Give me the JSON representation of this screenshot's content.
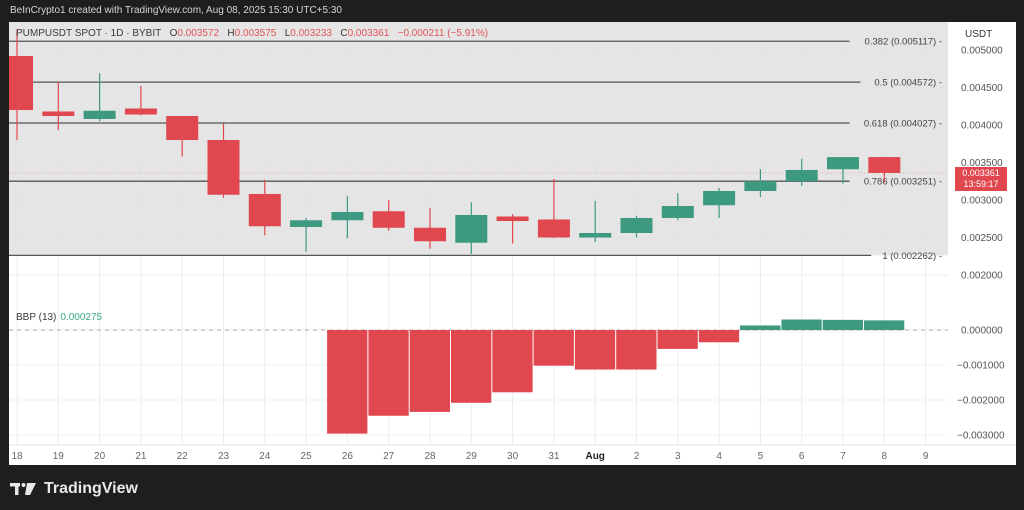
{
  "header": {
    "attribution": "BeInCrypto1 created with TradingView.com, Aug 08, 2025 15:30 UTC+5:30"
  },
  "legend": {
    "symbol": "PUMPUSDT SPOT · 1D · BYBIT",
    "o_label": "O",
    "o_value": "0.003572",
    "h_label": "H",
    "h_value": "0.003575",
    "l_label": "L",
    "l_value": "0.003233",
    "c_label": "C",
    "c_value": "0.003361",
    "change": "−0.000211 (−5.91%)"
  },
  "price_axis": {
    "unit": "USDT",
    "ticks": [
      "0.005000",
      "0.004500",
      "0.004000",
      "0.003500",
      "0.003000",
      "0.002500",
      "0.002000"
    ]
  },
  "last_price_tag": {
    "price": "0.003361",
    "countdown": "13:59:17"
  },
  "indicator": {
    "name": "BBP (13)",
    "value": "0.000275",
    "ticks": [
      "0.000000",
      "−0.001000",
      "−0.002000",
      "−0.003000"
    ]
  },
  "footer": {
    "brand": "TradingView"
  },
  "colors": {
    "up": "#3d9a80",
    "down": "#e0474e",
    "fib_zone": "#e2e2e2",
    "fib_line": "#555555"
  },
  "chart_data": [
    {
      "type": "candlestick",
      "title": "PUMPUSDT SPOT · 1D · BYBIT",
      "ylabel": "USDT",
      "ylim": [
        0.0019,
        0.00525
      ],
      "x": [
        "18",
        "19",
        "20",
        "21",
        "22",
        "23",
        "24",
        "25",
        "26",
        "27",
        "28",
        "29",
        "30",
        "31",
        "Aug",
        "2",
        "3",
        "4",
        "5",
        "6",
        "7",
        "8"
      ],
      "x_ticks": [
        "18",
        "19",
        "20",
        "21",
        "22",
        "23",
        "24",
        "25",
        "26",
        "27",
        "28",
        "29",
        "30",
        "31",
        "Aug",
        "2",
        "3",
        "4",
        "5",
        "6",
        "7",
        "8",
        "9"
      ],
      "open": [
        0.00492,
        0.00418,
        0.00408,
        0.00422,
        0.00412,
        0.0038,
        0.00308,
        0.00264,
        0.00273,
        0.00285,
        0.00263,
        0.00243,
        0.00278,
        0.00274,
        0.0025,
        0.00256,
        0.00276,
        0.00293,
        0.00312,
        0.00325,
        0.00341,
        0.003572
      ],
      "high": [
        0.00527,
        0.00457,
        0.00469,
        0.00452,
        0.00412,
        0.00402,
        0.00327,
        0.00276,
        0.00305,
        0.003,
        0.00289,
        0.00297,
        0.00281,
        0.00328,
        0.00299,
        0.00279,
        0.00309,
        0.00316,
        0.00341,
        0.00355,
        0.003572,
        0.003575
      ],
      "low": [
        0.0038,
        0.00393,
        0.00405,
        0.00413,
        0.00358,
        0.00303,
        0.00253,
        0.00231,
        0.00249,
        0.00259,
        0.00235,
        0.00228,
        0.00242,
        0.00249,
        0.00244,
        0.0025,
        0.00273,
        0.00276,
        0.00304,
        0.00319,
        0.00322,
        0.003233
      ],
      "close": [
        0.0042,
        0.00412,
        0.00419,
        0.00414,
        0.0038,
        0.00307,
        0.00265,
        0.00273,
        0.00284,
        0.00263,
        0.00245,
        0.0028,
        0.00272,
        0.0025,
        0.00256,
        0.00276,
        0.00292,
        0.00312,
        0.00325,
        0.0034,
        0.003572,
        0.003361
      ],
      "fib_levels": [
        {
          "ratio": "0.382",
          "price": 0.005117,
          "label": "0.382 (0.005117)"
        },
        {
          "ratio": "0.5",
          "price": 0.004572,
          "label": "0.5 (0.004572)"
        },
        {
          "ratio": "0.618",
          "price": 0.004027,
          "label": "0.618 (0.004027)"
        },
        {
          "ratio": "0.786",
          "price": 0.003251,
          "label": "0.786 (0.003251)"
        },
        {
          "ratio": "1",
          "price": 0.002262,
          "label": "1 (0.002262)"
        }
      ],
      "last_price": 0.003361
    },
    {
      "type": "bar",
      "title": "BBP (13)",
      "ylim": [
        -0.0032,
        0.0004
      ],
      "categories": [
        "26",
        "27",
        "28",
        "29",
        "30",
        "31",
        "Aug",
        "2",
        "3",
        "4",
        "5",
        "6",
        "7",
        "8"
      ],
      "values": [
        -0.00296,
        -0.00245,
        -0.00234,
        -0.00208,
        -0.00178,
        -0.00102,
        -0.00113,
        -0.00113,
        -0.00054,
        -0.00035,
        0.00013,
        0.0003,
        0.00029,
        0.000275
      ]
    }
  ]
}
